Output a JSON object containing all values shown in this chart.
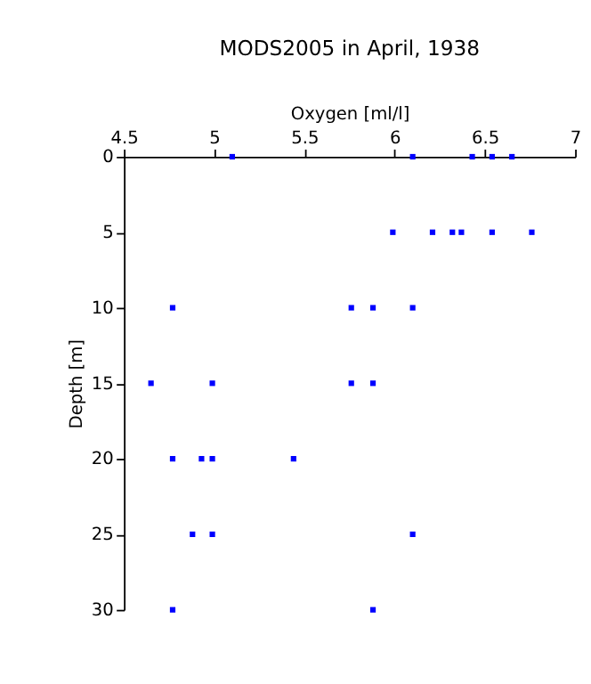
{
  "chart_data": {
    "type": "scatter",
    "title": "MODS2005 in April, 1938",
    "xlabel": "Oxygen [ml/l]",
    "ylabel": "Depth [m]",
    "xlim": [
      4.5,
      7
    ],
    "xticks": [
      4.5,
      5,
      5.5,
      6,
      6.5,
      7
    ],
    "ylim": [
      30,
      0
    ],
    "yticks": [
      0,
      5,
      10,
      15,
      20,
      25,
      30
    ],
    "grid": false,
    "legend": false,
    "marker": "square",
    "series": [
      {
        "color": "#0000ff",
        "x": [
          5.1,
          6.1,
          6.43,
          6.54,
          6.65,
          5.99,
          6.21,
          6.32,
          6.37,
          6.54,
          6.76,
          4.77,
          5.76,
          5.88,
          6.1,
          4.65,
          4.99,
          5.76,
          5.88,
          4.77,
          4.93,
          4.99,
          5.44,
          4.88,
          4.99,
          6.1,
          4.77,
          5.88
        ],
        "values": [
          0,
          0,
          0,
          0,
          0,
          5,
          5,
          5,
          5,
          5,
          5,
          10,
          10,
          10,
          10,
          15,
          15,
          15,
          15,
          20,
          20,
          20,
          20,
          25,
          25,
          25,
          30,
          30
        ]
      }
    ]
  }
}
